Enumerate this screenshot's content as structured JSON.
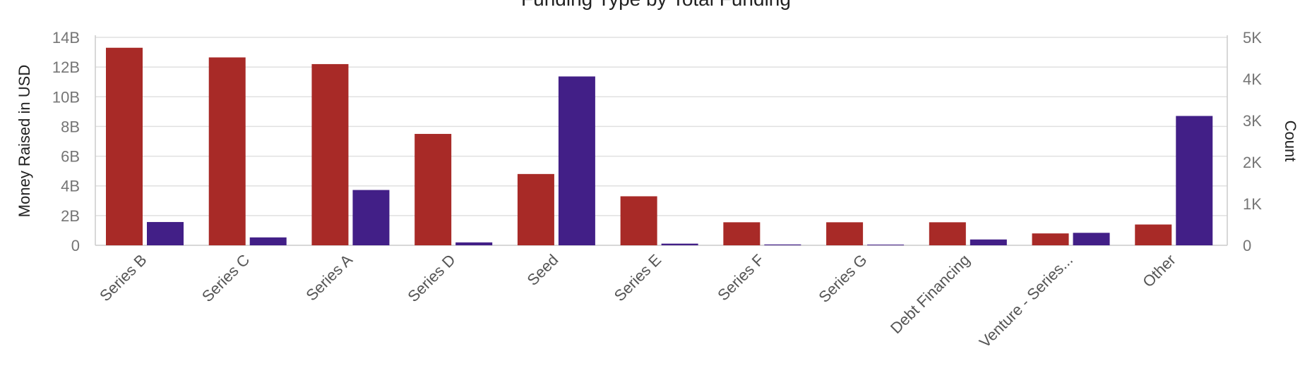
{
  "chart_data": {
    "type": "bar",
    "title": "Funding Type by Total Funding",
    "categories": [
      "Series B",
      "Series C",
      "Series A",
      "Series D",
      "Seed",
      "Series E",
      "Series F",
      "Series G",
      "Debt Financing",
      "Venture - Series...",
      "Other"
    ],
    "series": [
      {
        "axis": "left",
        "color": "#a82a27",
        "values": [
          13300000000.0,
          12650000000.0,
          12200000000.0,
          7500000000.0,
          4800000000.0,
          3300000000.0,
          1550000000.0,
          1550000000.0,
          1550000000.0,
          800000000.0,
          1400000000.0
        ]
      },
      {
        "axis": "right",
        "color": "#421f87",
        "values": [
          560,
          190,
          1330,
          70,
          4060,
          40,
          20,
          15,
          140,
          300,
          3110
        ]
      }
    ],
    "y_left": {
      "label": "Money Raised in USD",
      "min": 0,
      "max": 14000000000.0,
      "ticks": [
        0,
        2000000000.0,
        4000000000.0,
        6000000000.0,
        8000000000.0,
        10000000000.0,
        12000000000.0,
        14000000000.0
      ],
      "tick_labels": [
        "0",
        "2B",
        "4B",
        "6B",
        "8B",
        "10B",
        "12B",
        "14B"
      ]
    },
    "y_right": {
      "label": "Count",
      "min": 0,
      "max": 5000,
      "ticks": [
        0,
        1000,
        2000,
        3000,
        4000,
        5000
      ],
      "tick_labels": [
        "0",
        "1K",
        "2K",
        "3K",
        "4K",
        "5K"
      ]
    },
    "grid": true,
    "legend": "none"
  }
}
